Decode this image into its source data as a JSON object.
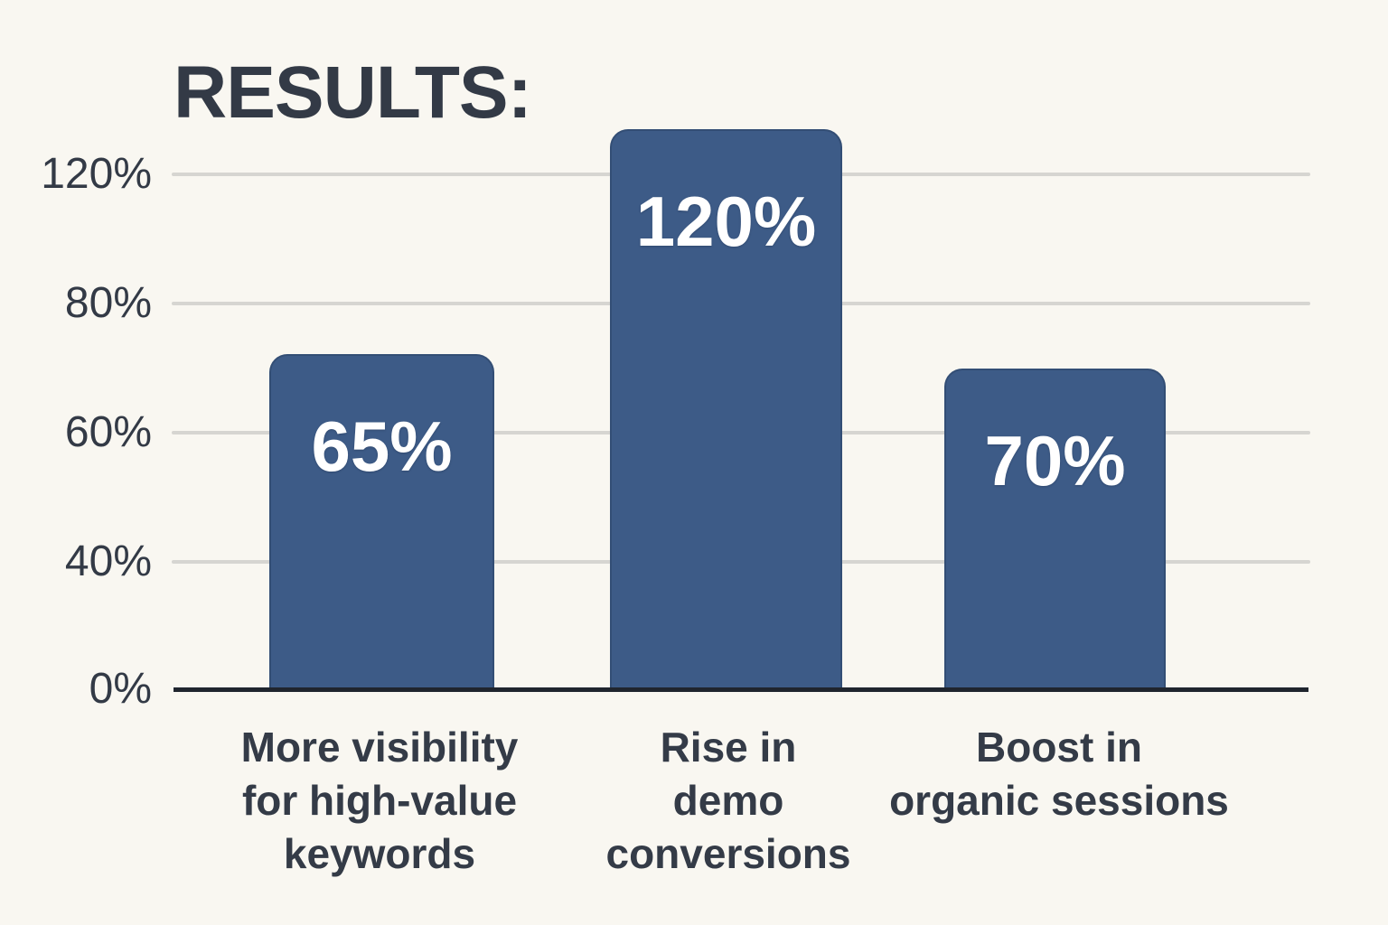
{
  "page": {
    "background_color": "#f9f7f1",
    "text_color": "#343b47",
    "bar_color": "#3d5b87",
    "gridline_color": "#d6d5d1",
    "axis_color": "#20252e"
  },
  "chart_data": {
    "type": "bar",
    "title": "RESULTS:",
    "categories": [
      "More visibility\nfor high-value\nkeywords",
      "Rise in\ndemo\nconversions",
      "Boost in\norganic sessions"
    ],
    "values": [
      65,
      120,
      70
    ],
    "value_labels": [
      "65%",
      "120%",
      "70%"
    ],
    "ytick_labels": [
      "120%",
      "80%",
      "60%",
      "40%",
      "0%"
    ],
    "xlabel": "",
    "ylabel": "",
    "ylim_labels": [
      0,
      120
    ],
    "grid": "horizontal-on",
    "legend": "none",
    "bar_label_position": "inside-top",
    "bar_corner_style": "rounded-top"
  }
}
